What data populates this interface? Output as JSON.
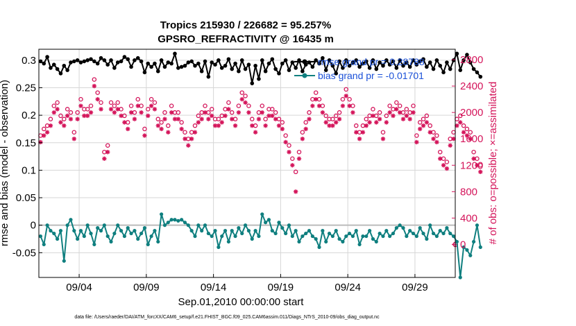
{
  "chart_data": {
    "type": "line",
    "title": "Tropics 215930 / 226682 = 95.257%",
    "subtitle": "GPSRO_REFRACTIVITY @ 16435 m",
    "xlabel": "Sep.01,2010 00:00:00 start",
    "ylabel_left": "rmse and bias (model - observation)",
    "ylabel_right": "# of obs: o=possible; ×=assimilated",
    "footer": "data file: /Users/raeder/DAI/ATM_forcXX/CAM6_setup/f.e21.FHIST_BGC.f09_025.CAM6assim.011/Diags_NTrS_2010-09/obs_diag_output.nc",
    "x_tick_labels": [
      "09/04",
      "09/09",
      "09/14",
      "09/19",
      "09/24",
      "09/29"
    ],
    "x_tick_days": [
      4,
      9,
      14,
      19,
      24,
      29
    ],
    "y_left_ticks": [
      "-0.05",
      "0",
      "0.05",
      "0.1",
      "0.15",
      "0.2",
      "0.25",
      "0.3"
    ],
    "y_left_tick_values": [
      -0.05,
      0,
      0.05,
      0.1,
      0.15,
      0.2,
      0.25,
      0.3
    ],
    "y_right_ticks": [
      "0",
      "400",
      "800",
      "1200",
      "1600",
      "2000",
      "2400",
      "2800"
    ],
    "y_right_tick_values": [
      0,
      400,
      800,
      1200,
      1600,
      2000,
      2400,
      2800
    ],
    "ylim_left": [
      -0.095,
      0.32
    ],
    "ylim_right": [
      -500,
      2958
    ],
    "xlim_days": [
      1,
      32
    ],
    "legend": [
      "rmse grand pr = 0.28788",
      "bias grand pr = -0.01701"
    ],
    "colors": {
      "rmse": "#000000",
      "bias": "#0f7f7f",
      "obs": "#d4145a",
      "legend_text": "#1a50d8",
      "zero_line": "#bbbbbb"
    },
    "series": [
      {
        "name": "rmse",
        "day_start": 1.125,
        "day_step": 0.25,
        "values": [
          0.298,
          0.294,
          0.306,
          0.286,
          0.292,
          0.284,
          0.276,
          0.29,
          0.282,
          0.296,
          0.298,
          0.3,
          0.296,
          0.298,
          0.3,
          0.302,
          0.298,
          0.294,
          0.304,
          0.3,
          0.292,
          0.3,
          0.286,
          0.296,
          0.298,
          0.306,
          0.302,
          0.288,
          0.3,
          0.304,
          0.298,
          0.278,
          0.294,
          0.288,
          0.294,
          0.28,
          0.3,
          0.288,
          0.296,
          0.294,
          0.312,
          0.286,
          0.288,
          0.29,
          0.296,
          0.298,
          0.29,
          0.294,
          0.28,
          0.298,
          0.27,
          0.296,
          0.292,
          0.3,
          0.286,
          0.29,
          0.302,
          0.284,
          0.294,
          0.28,
          0.3,
          0.284,
          0.292,
          0.258,
          0.29,
          0.266,
          0.3,
          0.28,
          0.294,
          0.302,
          0.284,
          0.276,
          0.294,
          0.3,
          0.282,
          0.296,
          0.286,
          0.3,
          0.28,
          0.292,
          0.296,
          0.288,
          0.3,
          0.294,
          0.304,
          0.282,
          0.3,
          0.29,
          0.276,
          0.298,
          0.286,
          0.3,
          0.29,
          0.296,
          0.3,
          0.288,
          0.294,
          0.298,
          0.286,
          0.3,
          0.284,
          0.296,
          0.29,
          0.3,
          0.292,
          0.298,
          0.286,
          0.3,
          0.29,
          0.296,
          0.288,
          0.3,
          0.292,
          0.298,
          0.302,
          0.288,
          0.296,
          0.284,
          0.3,
          0.29,
          0.278,
          0.296,
          0.284,
          0.3,
          0.312,
          0.282,
          0.3,
          0.31,
          0.296,
          0.284,
          0.278,
          0.27
        ]
      },
      {
        "name": "bias",
        "day_start": 1.125,
        "day_step": 0.25,
        "values": [
          -0.02,
          -0.035,
          0.0,
          -0.01,
          -0.015,
          -0.025,
          -0.01,
          -0.065,
          0.0,
          0.01,
          -0.01,
          -0.025,
          -0.01,
          -0.02,
          0.0,
          -0.015,
          -0.035,
          -0.005,
          -0.01,
          0.0,
          -0.02,
          -0.03,
          -0.015,
          0.0,
          -0.01,
          -0.02,
          -0.005,
          -0.015,
          -0.01,
          -0.025,
          -0.015,
          -0.005,
          -0.035,
          -0.02,
          -0.01,
          -0.03,
          0.02,
          0.0,
          0.005,
          0.01,
          0.01,
          0.008,
          0.01,
          0.005,
          0.0,
          -0.01,
          -0.02,
          0.0,
          -0.01,
          0.0,
          -0.015,
          -0.02,
          -0.01,
          -0.04,
          -0.02,
          -0.01,
          -0.03,
          -0.01,
          -0.02,
          -0.005,
          -0.015,
          0.0,
          -0.01,
          -0.025,
          -0.01,
          -0.02,
          0.02,
          0.005,
          0.01,
          -0.01,
          -0.015,
          0.005,
          -0.005,
          -0.015,
          0.0,
          -0.02,
          -0.01,
          -0.03,
          -0.02,
          -0.015,
          -0.01,
          -0.02,
          -0.025,
          -0.04,
          -0.01,
          -0.03,
          -0.015,
          -0.02,
          -0.01,
          -0.025,
          -0.03,
          -0.02,
          -0.015,
          -0.02,
          -0.01,
          -0.035,
          -0.02,
          -0.02,
          -0.01,
          -0.025,
          -0.03,
          -0.015,
          -0.02,
          -0.01,
          -0.02,
          -0.015,
          -0.005,
          0.0,
          -0.005,
          -0.02,
          -0.01,
          -0.015,
          -0.02,
          -0.005,
          -0.015,
          -0.025,
          0.0,
          -0.015,
          -0.02,
          -0.01,
          -0.015,
          -0.005,
          -0.015,
          -0.02,
          -0.03,
          -0.095,
          -0.04,
          -0.045,
          -0.055,
          -0.03,
          0.0,
          -0.04
        ]
      },
      {
        "name": "obs_possible",
        "day_start": 1.125,
        "day_step": 0.25,
        "values": [
          1650,
          1750,
          1800,
          1900,
          2100,
          2150,
          1950,
          1900,
          2050,
          2000,
          1700,
          2000,
          2200,
          2050,
          2050,
          2100,
          2500,
          2300,
          2150,
          1400,
          1500,
          2150,
          2100,
          2150,
          2050,
          1950,
          1850,
          2100,
          2000,
          2200,
          2100,
          1750,
          2050,
          2200,
          2150,
          1900,
          1850,
          2000,
          1800,
          2100,
          2000,
          2000,
          1850,
          1700,
          1600,
          1700,
          1800,
          1950,
          2000,
          2100,
          2000,
          2050,
          1900,
          1900,
          1950,
          2050,
          2150,
          2000,
          1900,
          2100,
          2300,
          2250,
          2100,
          1900,
          1800,
          2000,
          2100,
          1900,
          2050,
          2050,
          2000,
          1900,
          1850,
          1650,
          1500,
          1300,
          1100,
          1400,
          1700,
          1850,
          2000,
          2200,
          2300,
          2200,
          2100,
          1950,
          1900,
          1900,
          1950,
          2000,
          2200,
          2350,
          2200,
          2100,
          1800,
          1700,
          1800,
          1900,
          1950,
          2050,
          1950,
          2000,
          1700,
          1950,
          2100,
          2050,
          2150,
          2100,
          2000,
          2050,
          2000,
          2100,
          1650,
          1850,
          1900,
          1950,
          1800,
          1700,
          1650,
          1400,
          1300,
          1250,
          1600,
          1700,
          1900,
          1950,
          1800,
          1750,
          1700,
          1400,
          1300,
          1200
        ]
      },
      {
        "name": "obs_assimilated",
        "day_start": 1.125,
        "day_step": 0.25,
        "values": [
          1550,
          1650,
          1700,
          1800,
          2000,
          2050,
          1850,
          1800,
          1950,
          1900,
          1600,
          1900,
          2100,
          1950,
          1950,
          2000,
          2400,
          2200,
          2050,
          1300,
          1400,
          2050,
          2000,
          2050,
          1950,
          1850,
          1750,
          2000,
          1900,
          2100,
          2000,
          1650,
          1950,
          2100,
          2050,
          1800,
          1750,
          1900,
          1700,
          2000,
          1900,
          1900,
          1750,
          1600,
          1500,
          1600,
          1700,
          1850,
          1900,
          2000,
          1900,
          1950,
          1800,
          1800,
          1850,
          1950,
          2050,
          1900,
          1800,
          2000,
          2200,
          2150,
          2000,
          1800,
          1700,
          1900,
          2000,
          1800,
          1950,
          1950,
          1900,
          1800,
          1750,
          1550,
          1400,
          1200,
          800,
          1300,
          1600,
          1750,
          1900,
          2100,
          2200,
          2100,
          2000,
          1850,
          1800,
          1800,
          1850,
          1900,
          2100,
          2250,
          2100,
          2000,
          1700,
          1600,
          1700,
          1800,
          1850,
          1950,
          1850,
          1900,
          1600,
          1850,
          2000,
          1950,
          2050,
          2000,
          1900,
          1950,
          1900,
          2000,
          1550,
          1750,
          1800,
          1850,
          1700,
          1600,
          1550,
          1300,
          1200,
          1150,
          1500,
          1600,
          1800,
          1850,
          1700,
          1650,
          1600,
          1300,
          1200,
          1100
        ]
      }
    ],
    "extra_marks": {
      "obs_possible_zero_day": 32,
      "obs_possible_zero_value": 0
    }
  }
}
